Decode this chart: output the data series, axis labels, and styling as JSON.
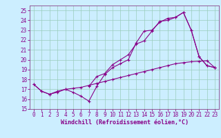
{
  "xlabel": "Windchill (Refroidissement éolien,°C)",
  "bg_color": "#cceeff",
  "grid_color": "#99ccbb",
  "line_color": "#880088",
  "spine_color": "#884488",
  "xlim": [
    -0.5,
    23.5
  ],
  "ylim": [
    15,
    25.5
  ],
  "xticks": [
    0,
    1,
    2,
    3,
    4,
    5,
    6,
    7,
    8,
    9,
    10,
    11,
    12,
    13,
    14,
    15,
    16,
    17,
    18,
    19,
    20,
    21,
    22,
    23
  ],
  "yticks": [
    15,
    16,
    17,
    18,
    19,
    20,
    21,
    22,
    23,
    24,
    25
  ],
  "line1_x": [
    0,
    1,
    2,
    3,
    4,
    5,
    6,
    7,
    8,
    9,
    10,
    11,
    12,
    13,
    14,
    15,
    16,
    17,
    18,
    19,
    20,
    21,
    22,
    23
  ],
  "line1_y": [
    17.5,
    16.8,
    16.5,
    16.7,
    17.0,
    16.7,
    16.3,
    15.8,
    17.3,
    18.5,
    19.2,
    19.6,
    20.0,
    21.7,
    22.9,
    23.0,
    23.8,
    24.2,
    24.3,
    24.8,
    23.0,
    20.3,
    19.4,
    19.2
  ],
  "line2_x": [
    0,
    1,
    2,
    3,
    4,
    5,
    6,
    7,
    8,
    9,
    10,
    11,
    12,
    13,
    14,
    15,
    16,
    17,
    18,
    19,
    20,
    21,
    22,
    23
  ],
  "line2_y": [
    17.5,
    16.8,
    16.5,
    16.8,
    17.0,
    17.1,
    17.2,
    17.4,
    17.6,
    17.8,
    18.0,
    18.2,
    18.4,
    18.6,
    18.8,
    19.0,
    19.2,
    19.4,
    19.6,
    19.7,
    19.8,
    19.85,
    19.9,
    19.2
  ],
  "line3_x": [
    7,
    8,
    9,
    10,
    11,
    12,
    13,
    14,
    15,
    16,
    17,
    18,
    19,
    20,
    21,
    22,
    23
  ],
  "line3_y": [
    17.3,
    18.3,
    18.6,
    19.5,
    20.0,
    20.5,
    21.6,
    21.9,
    22.9,
    23.9,
    24.0,
    24.3,
    24.8,
    23.0,
    20.3,
    19.4,
    19.2
  ],
  "tick_fontsize": 5.5,
  "xlabel_fontsize": 6.0,
  "linewidth": 0.8,
  "markersize": 3.0,
  "markeredgewidth": 0.8
}
